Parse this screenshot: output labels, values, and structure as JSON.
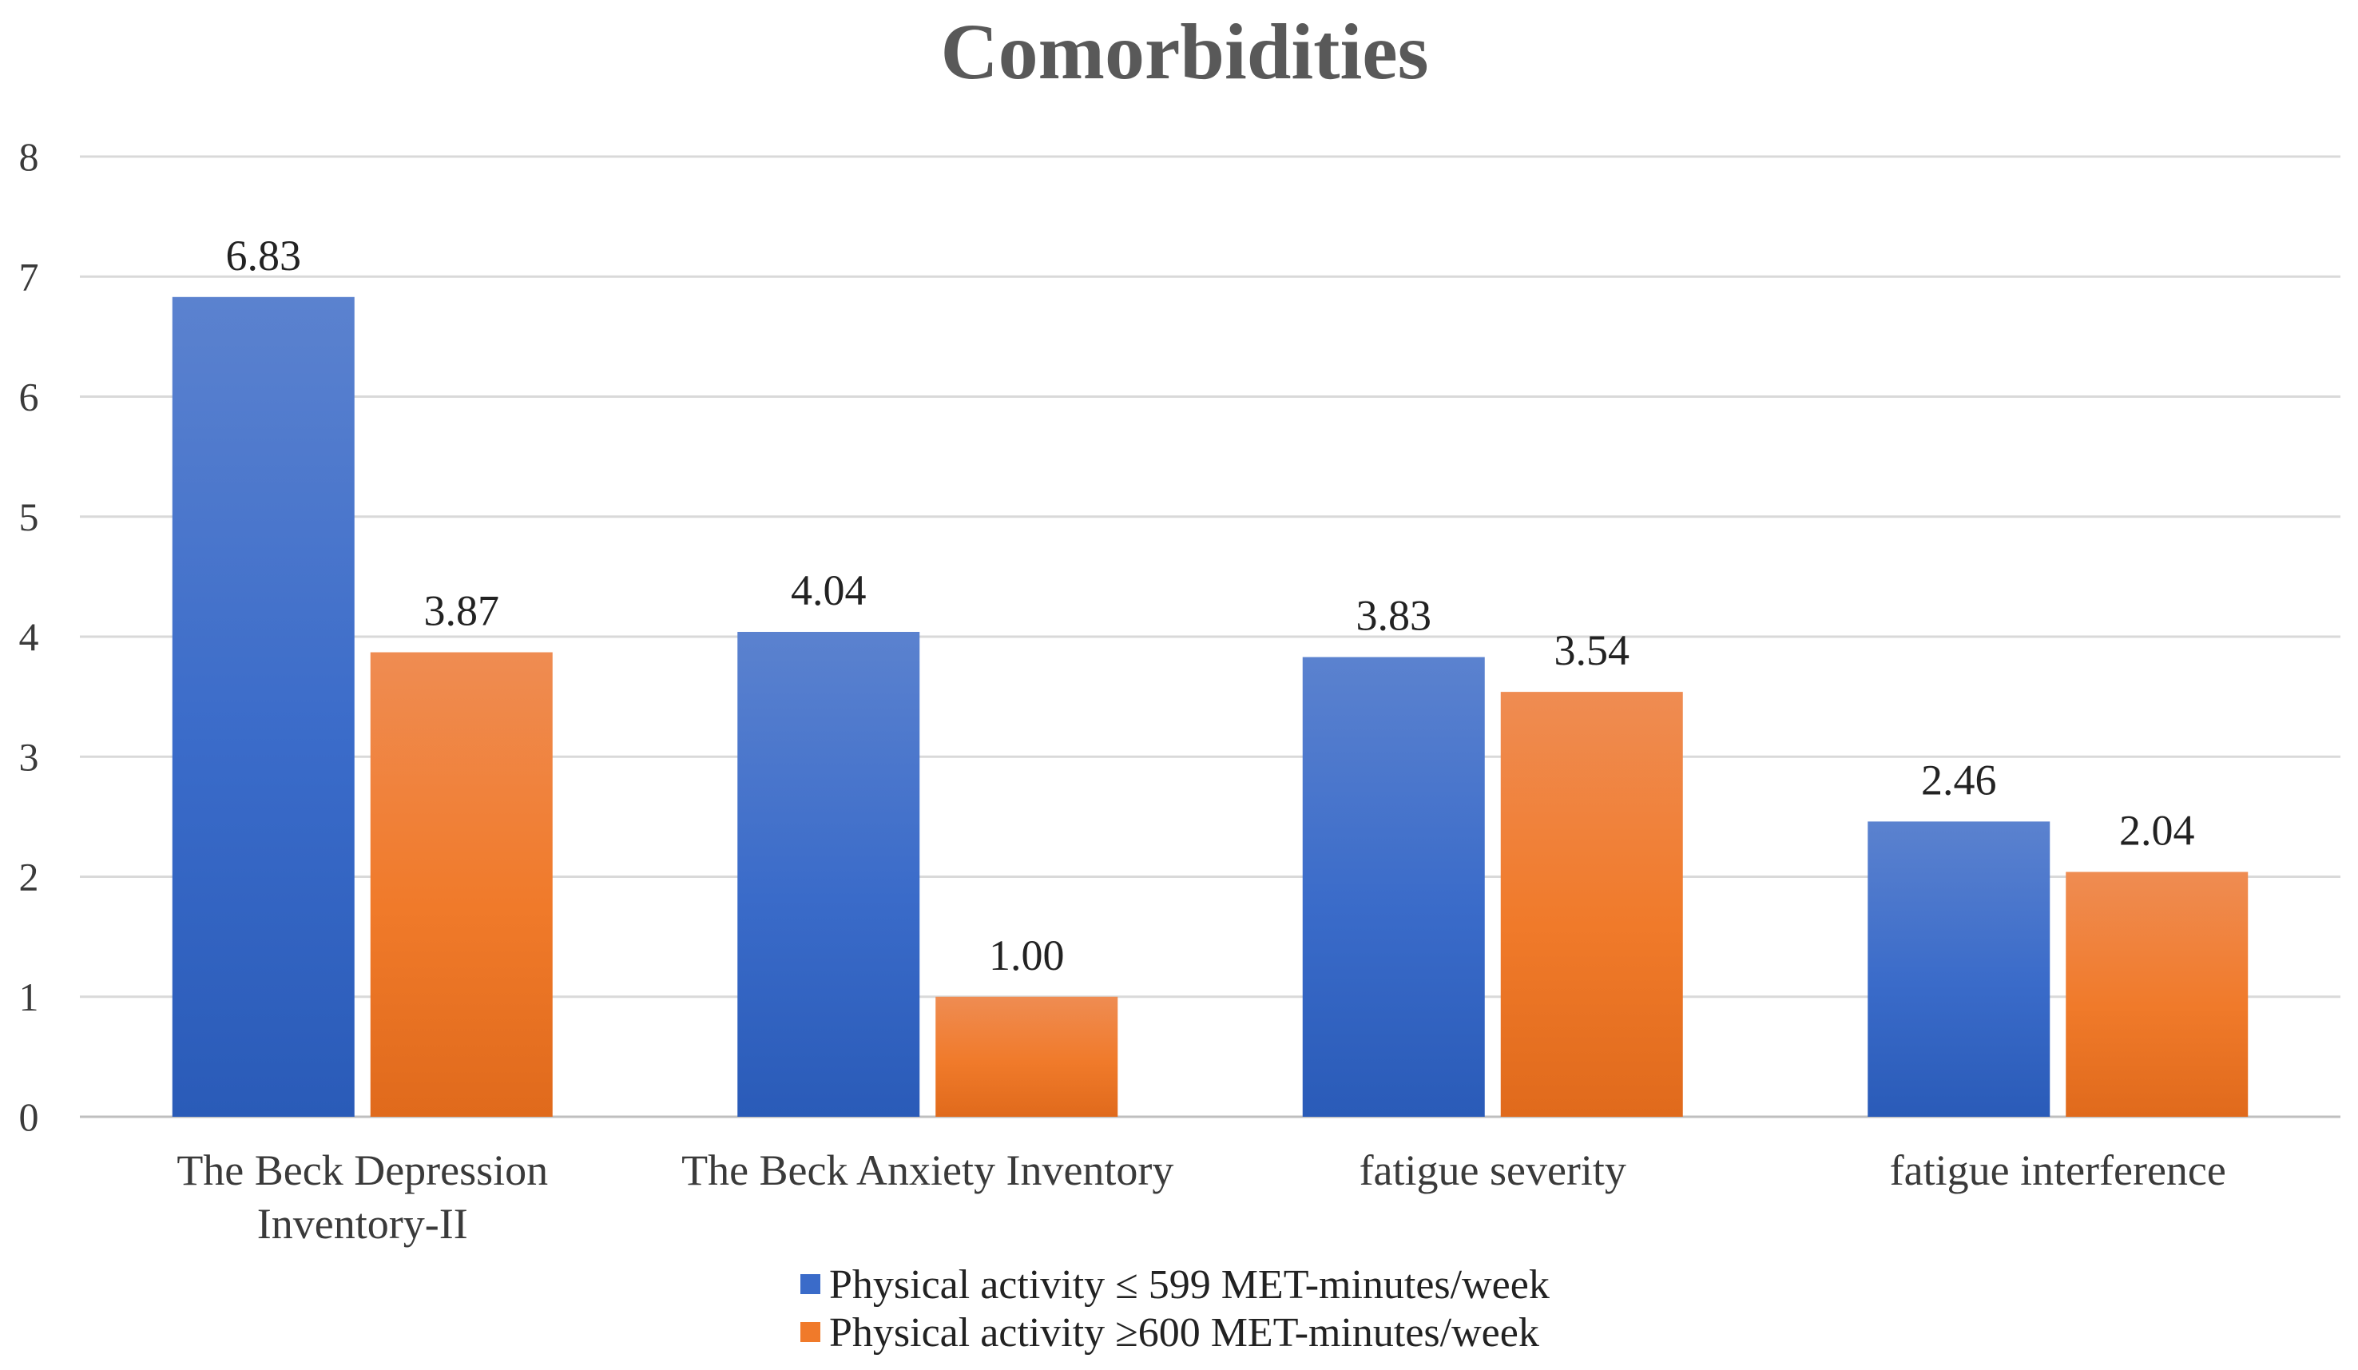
{
  "chart_data": {
    "type": "bar",
    "title": "Comorbidities",
    "categories": [
      [
        "The Beck Depression",
        "Inventory-II"
      ],
      [
        "The Beck Anxiety Inventory"
      ],
      [
        "fatigue severity"
      ],
      [
        "fatigue interference"
      ]
    ],
    "series": [
      {
        "name": "Physical activity ≤ 599 MET-minutes/week",
        "values": [
          6.83,
          4.04,
          3.83,
          2.46
        ],
        "labels": [
          "6.83",
          "4.04",
          "3.83",
          "2.46"
        ],
        "color": "#4472c4"
      },
      {
        "name": "Physical activity ≥600 MET-minutes/week",
        "values": [
          3.87,
          1.0,
          3.54,
          2.04
        ],
        "labels": [
          "3.87",
          "1.00",
          "3.54",
          "2.04"
        ],
        "color": "#ed7d31"
      }
    ],
    "yticks": [
      "0",
      "1",
      "2",
      "3",
      "4",
      "5",
      "6",
      "7",
      "8"
    ],
    "ylim": [
      0,
      8
    ],
    "grid": true,
    "legend": "bottom",
    "xlabel": "",
    "ylabel": ""
  }
}
